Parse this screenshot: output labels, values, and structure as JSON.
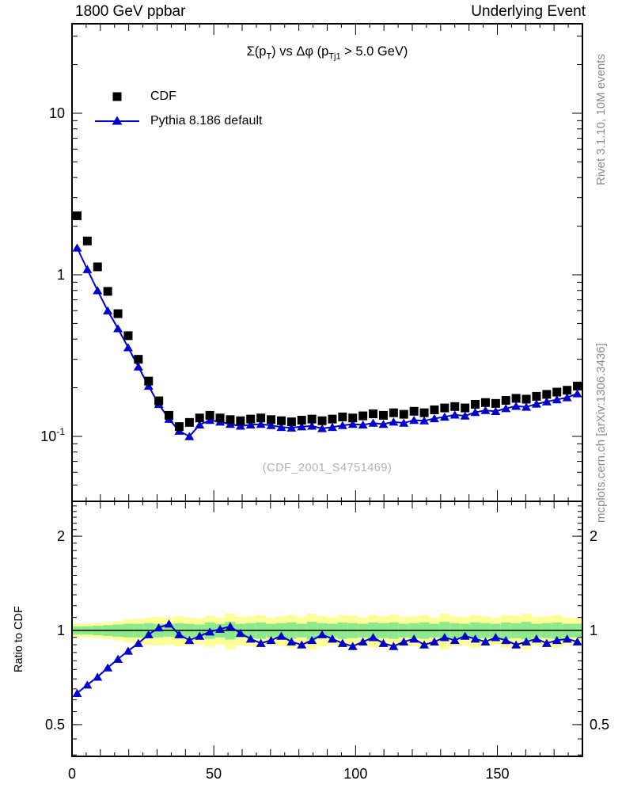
{
  "header": {
    "left": "1800 GeV ppbar",
    "right": "Underlying Event"
  },
  "title": {
    "p1": "Σ(p",
    "s1": "T",
    "p2": ") vs Δφ (p",
    "s2": "Tj1",
    "p3": " > 5.0 GeV)"
  },
  "legend": {
    "cdf_label": "CDF",
    "pythia_label": "Pythia 8.186 default",
    "cdf_marker": "black-square",
    "pythia_marker": "blue-line-triangle"
  },
  "side_notes": {
    "rivet": "Rivet 3.1.10,  10M events",
    "mcplots": "mcplots.cern.ch [arXiv:1306.3436]",
    "watermark": "(CDF_2001_S4751469)"
  },
  "ratio_axis_label": "Ratio to CDF",
  "colors": {
    "pythia_blue": "#0000cc",
    "band_yellow": "#ffff99",
    "band_green": "#8ce98c",
    "side_gray": "#8c8c8c",
    "watermark_gray": "#b2b2b2",
    "black": "#000000"
  },
  "chart_data": [
    {
      "type": "line",
      "panel": "main",
      "title": "Σ(p_T) vs Δφ (p_Tj1 > 5.0 GeV)",
      "xlabel": "",
      "ylabel": "",
      "x_range": [
        0,
        180
      ],
      "y_scale": "log",
      "y_range": [
        0.0397,
        35.8
      ],
      "grid": false,
      "legend_position": "top-left",
      "x": [
        1.8,
        5.4,
        9,
        12.6,
        16.2,
        19.8,
        23.4,
        27,
        30.6,
        34.2,
        37.8,
        41.4,
        45,
        48.6,
        52.2,
        55.8,
        59.4,
        63,
        66.6,
        70.2,
        73.8,
        77.4,
        81,
        84.6,
        88.2,
        91.8,
        95.4,
        99,
        102.6,
        106.2,
        109.8,
        113.4,
        117,
        120.6,
        124.2,
        127.8,
        131.4,
        135,
        138.6,
        142.2,
        145.8,
        149.4,
        153,
        156.6,
        160.2,
        163.8,
        167.4,
        171,
        174.6,
        178.2
      ],
      "series": [
        {
          "name": "CDF",
          "marker": "square",
          "color": "#000000",
          "values": [
            2.32,
            1.62,
            1.12,
            0.79,
            0.575,
            0.42,
            0.3,
            0.22,
            0.166,
            0.135,
            0.115,
            0.122,
            0.13,
            0.135,
            0.13,
            0.127,
            0.125,
            0.128,
            0.13,
            0.127,
            0.125,
            0.123,
            0.126,
            0.128,
            0.125,
            0.128,
            0.132,
            0.13,
            0.134,
            0.138,
            0.135,
            0.14,
            0.137,
            0.143,
            0.14,
            0.146,
            0.15,
            0.153,
            0.15,
            0.158,
            0.162,
            0.16,
            0.167,
            0.172,
            0.17,
            0.177,
            0.182,
            0.188,
            0.193,
            0.205
          ]
        },
        {
          "name": "Pythia 8.186 default",
          "marker": "triangle",
          "color": "#0000cc",
          "values": [
            1.47,
            1.08,
            0.8,
            0.6,
            0.465,
            0.355,
            0.27,
            0.205,
            0.158,
            0.128,
            0.108,
            0.1,
            0.118,
            0.126,
            0.123,
            0.119,
            0.116,
            0.118,
            0.119,
            0.117,
            0.114,
            0.113,
            0.115,
            0.116,
            0.112,
            0.114,
            0.117,
            0.119,
            0.118,
            0.121,
            0.119,
            0.123,
            0.121,
            0.126,
            0.125,
            0.129,
            0.132,
            0.136,
            0.134,
            0.141,
            0.145,
            0.143,
            0.149,
            0.154,
            0.152,
            0.159,
            0.164,
            0.169,
            0.174,
            0.184
          ]
        }
      ],
      "x_ticks": [
        {
          "v": 0,
          "t": "0"
        },
        {
          "v": 50,
          "t": "50"
        },
        {
          "v": 100,
          "t": "100"
        },
        {
          "v": 150,
          "t": "150"
        }
      ],
      "y_ticks": [
        {
          "v": 10,
          "t": "10",
          "exp": ""
        },
        {
          "v": 1,
          "t": "1",
          "exp": ""
        },
        {
          "v": 0.1,
          "t": "10",
          "exp": "-1"
        }
      ]
    },
    {
      "type": "ratio",
      "panel": "ratio",
      "ylabel": "Ratio to CDF",
      "x_range": [
        0,
        180
      ],
      "y_scale": "log",
      "y_range": [
        0.396,
        2.59
      ],
      "reference_line": 1,
      "x": [
        1.8,
        5.4,
        9,
        12.6,
        16.2,
        19.8,
        23.4,
        27,
        30.6,
        34.2,
        37.8,
        41.4,
        45,
        48.6,
        52.2,
        55.8,
        59.4,
        63,
        66.6,
        70.2,
        73.8,
        77.4,
        81,
        84.6,
        88.2,
        91.8,
        95.4,
        99,
        102.6,
        106.2,
        109.8,
        113.4,
        117,
        120.6,
        124.2,
        127.8,
        131.4,
        135,
        138.6,
        142.2,
        145.8,
        149.4,
        153,
        156.6,
        160.2,
        163.8,
        167.4,
        171,
        174.6,
        178.2
      ],
      "series": [
        {
          "name": "Pythia 8.186 default / CDF",
          "marker": "triangle",
          "color": "#0000cc",
          "values": [
            0.63,
            0.67,
            0.71,
            0.76,
            0.81,
            0.86,
            0.91,
            0.97,
            1.02,
            1.05,
            0.97,
            0.93,
            0.96,
            0.99,
            1.01,
            1.03,
            0.98,
            0.94,
            0.91,
            0.93,
            0.96,
            0.92,
            0.9,
            0.93,
            0.97,
            0.94,
            0.91,
            0.89,
            0.92,
            0.95,
            0.91,
            0.89,
            0.92,
            0.94,
            0.9,
            0.92,
            0.95,
            0.93,
            0.96,
            0.94,
            0.92,
            0.95,
            0.93,
            0.9,
            0.92,
            0.94,
            0.91,
            0.93,
            0.94,
            0.92
          ]
        }
      ],
      "bands": {
        "yellow_halfwidth": [
          0.05,
          0.05,
          0.055,
          0.06,
          0.07,
          0.085,
          0.09,
          0.1,
          0.105,
          0.1,
          0.11,
          0.1,
          0.095,
          0.115,
          0.1,
          0.13,
          0.105,
          0.11,
          0.12,
          0.1,
          0.11,
          0.12,
          0.105,
          0.13,
          0.11,
          0.1,
          0.12,
          0.115,
          0.1,
          0.12,
          0.11,
          0.125,
          0.105,
          0.11,
          0.12,
          0.1,
          0.13,
          0.11,
          0.105,
          0.12,
          0.11,
          0.1,
          0.12,
          0.115,
          0.13,
          0.105,
          0.11,
          0.12,
          0.1,
          0.095
        ],
        "green_halfwidth": [
          0.03,
          0.03,
          0.035,
          0.04,
          0.045,
          0.05,
          0.05,
          0.055,
          0.05,
          0.045,
          0.055,
          0.05,
          0.045,
          0.06,
          0.05,
          0.065,
          0.05,
          0.055,
          0.06,
          0.05,
          0.055,
          0.06,
          0.05,
          0.065,
          0.055,
          0.05,
          0.06,
          0.055,
          0.05,
          0.06,
          0.055,
          0.06,
          0.05,
          0.055,
          0.06,
          0.05,
          0.065,
          0.055,
          0.05,
          0.06,
          0.055,
          0.05,
          0.06,
          0.055,
          0.065,
          0.05,
          0.055,
          0.06,
          0.05,
          0.05
        ]
      },
      "x_ticks": [
        {
          "v": 0,
          "t": "0"
        },
        {
          "v": 50,
          "t": "50"
        },
        {
          "v": 100,
          "t": "100"
        },
        {
          "v": 150,
          "t": "150"
        }
      ],
      "y_ticks": [
        {
          "v": 2,
          "t": "2"
        },
        {
          "v": 1,
          "t": "1"
        },
        {
          "v": 0.5,
          "t": "0.5"
        }
      ]
    }
  ]
}
